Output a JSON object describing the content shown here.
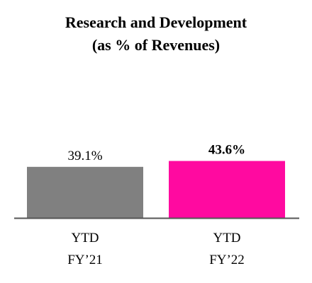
{
  "chart_data": {
    "type": "bar",
    "title": "Research and Development",
    "subtitle": "(as % of Revenues)",
    "categories": [
      [
        "YTD",
        "FY’21"
      ],
      [
        "YTD",
        "FY’22"
      ]
    ],
    "values": [
      39.1,
      43.6
    ],
    "value_labels": [
      "39.1%",
      "43.6%"
    ],
    "value_label_bold": [
      false,
      true
    ],
    "colors": [
      "#808080",
      "#ff0aa0"
    ],
    "axis_color": "#555555",
    "grid": false,
    "legend": "none",
    "ylim": [
      0,
      52
    ]
  }
}
